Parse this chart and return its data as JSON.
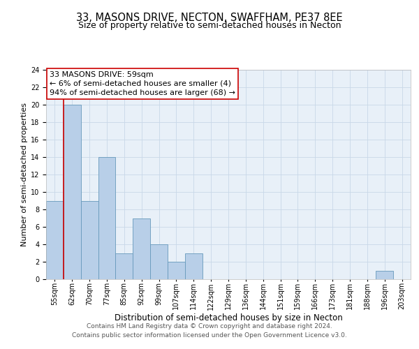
{
  "title": "33, MASONS DRIVE, NECTON, SWAFFHAM, PE37 8EE",
  "subtitle": "Size of property relative to semi-detached houses in Necton",
  "xlabel": "Distribution of semi-detached houses by size in Necton",
  "ylabel": "Number of semi-detached properties",
  "bin_labels": [
    "55sqm",
    "62sqm",
    "70sqm",
    "77sqm",
    "85sqm",
    "92sqm",
    "99sqm",
    "107sqm",
    "114sqm",
    "122sqm",
    "129sqm",
    "136sqm",
    "144sqm",
    "151sqm",
    "159sqm",
    "166sqm",
    "173sqm",
    "181sqm",
    "188sqm",
    "196sqm",
    "203sqm"
  ],
  "bin_values": [
    9,
    20,
    9,
    14,
    3,
    7,
    4,
    2,
    3,
    0,
    0,
    0,
    0,
    0,
    0,
    0,
    0,
    0,
    0,
    1,
    0
  ],
  "bar_color": "#b8cfe8",
  "bar_edge_color": "#6699bb",
  "annotation_title": "33 MASONS DRIVE: 59sqm",
  "annotation_line1": "← 6% of semi-detached houses are smaller (4)",
  "annotation_line2": "94% of semi-detached houses are larger (68) →",
  "annotation_box_color": "#ffffff",
  "annotation_box_edge_color": "#cc0000",
  "vline_color": "#cc0000",
  "ylim": [
    0,
    24
  ],
  "yticks": [
    0,
    2,
    4,
    6,
    8,
    10,
    12,
    14,
    16,
    18,
    20,
    22,
    24
  ],
  "grid_color": "#c8d8e8",
  "bg_color": "#e8f0f8",
  "footer_line1": "Contains HM Land Registry data © Crown copyright and database right 2024.",
  "footer_line2": "Contains public sector information licensed under the Open Government Licence v3.0.",
  "title_fontsize": 10.5,
  "subtitle_fontsize": 9,
  "xlabel_fontsize": 8.5,
  "ylabel_fontsize": 8,
  "tick_fontsize": 7,
  "annotation_title_fontsize": 8,
  "annotation_body_fontsize": 8,
  "footer_fontsize": 6.5
}
